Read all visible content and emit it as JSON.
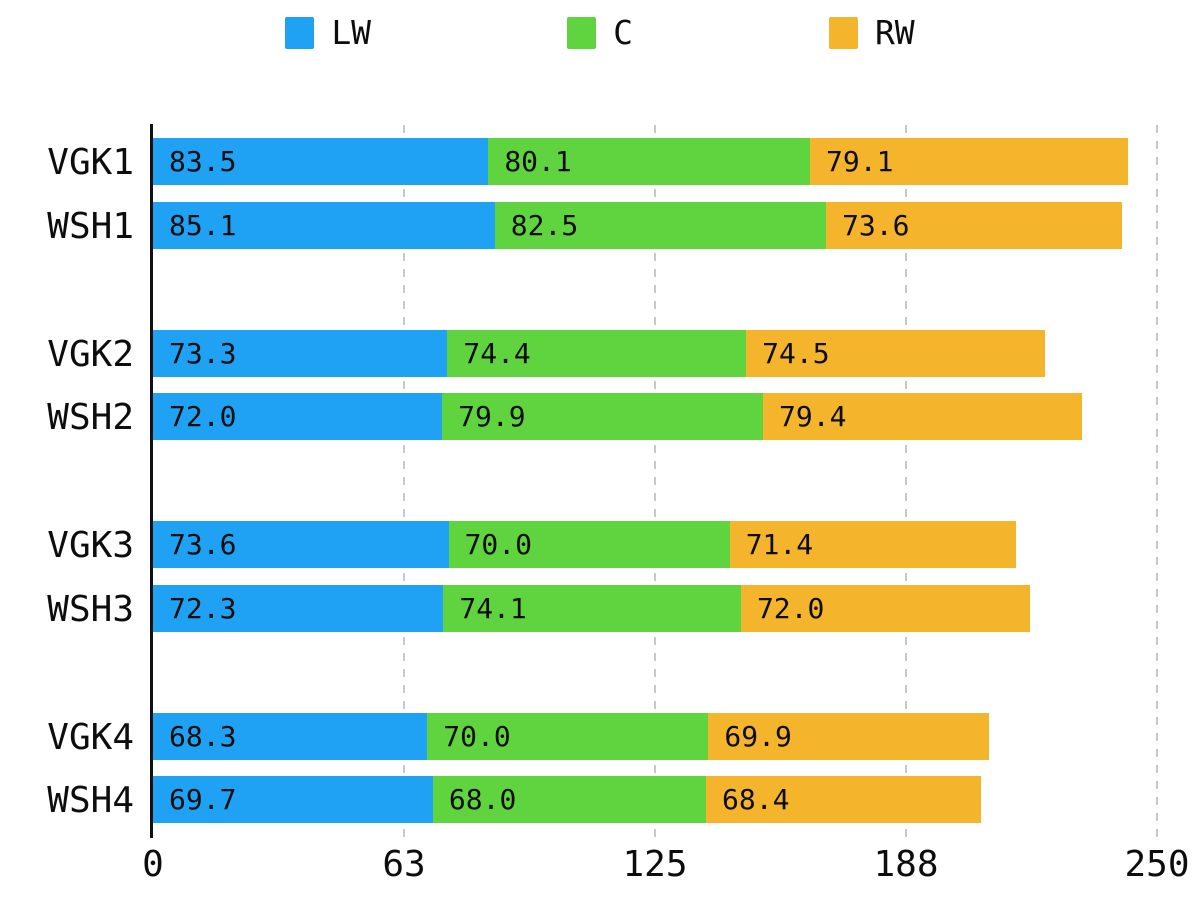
{
  "chart_data": {
    "type": "bar",
    "orientation": "horizontal",
    "stacked": true,
    "title": "",
    "categories": [
      "VGK1",
      "WSH1",
      "VGK2",
      "WSH2",
      "VGK3",
      "WSH3",
      "VGK4",
      "WSH4"
    ],
    "series": [
      {
        "name": "LW",
        "color": "#1fa1f4",
        "values": [
          83.5,
          85.1,
          73.3,
          72.0,
          73.6,
          72.3,
          68.3,
          69.7
        ]
      },
      {
        "name": "C",
        "color": "#5fd43e",
        "values": [
          80.1,
          82.5,
          74.4,
          79.9,
          70.0,
          74.1,
          70.0,
          68.0
        ]
      },
      {
        "name": "RW",
        "color": "#f4b42c",
        "values": [
          79.1,
          73.6,
          74.5,
          79.4,
          71.4,
          72.0,
          69.9,
          68.4
        ]
      }
    ],
    "bar_value_labels": true,
    "value_label_decimals": 1,
    "xlim": [
      0,
      250
    ],
    "xticks": [
      {
        "value": 0,
        "label": "0"
      },
      {
        "value": 62.5,
        "label": "63"
      },
      {
        "value": 125,
        "label": "125"
      },
      {
        "value": 187.5,
        "label": "188"
      },
      {
        "value": 250,
        "label": "250"
      }
    ],
    "grid": {
      "vertical_dashed": true,
      "color": "#c8c8c8"
    },
    "legend": {
      "position": "top",
      "entries": [
        "LW",
        "C",
        "RW"
      ]
    },
    "axis_color": "#111111",
    "text_color": "#0d0d0d",
    "background": "#ffffff"
  }
}
